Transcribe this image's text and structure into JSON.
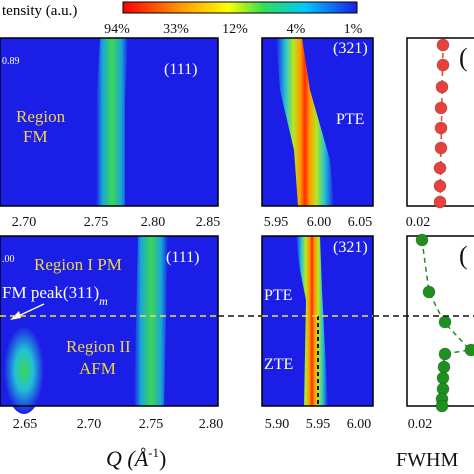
{
  "colors": {
    "background": "#1a1ee6",
    "region_text": "#f0d44a",
    "annotation_text": "#ffffff",
    "fm_points": "#e8403a",
    "afm_points": "#1f8f1f",
    "transition_line": "#f0e04a",
    "zte_line": "#111111"
  },
  "colorbar": {
    "title_fragment": "tensity (a.u.)",
    "tick_labels": [
      "94%",
      "33%",
      "12%",
      "4%",
      "1%"
    ]
  },
  "xaxis_label": "Q (Å",
  "xaxis_label_sup": "-1",
  "xaxis_label_close": ")",
  "fwhm_label": "FWHM",
  "chart_data": [
    {
      "panel": "top-left",
      "type": "heatmap",
      "corner_value": "0.89",
      "peak_label": "(111)",
      "region_lines": [
        "Region",
        "FM"
      ],
      "xticks": [
        "2.70",
        "2.75",
        "2.80",
        "2.85"
      ],
      "xlim": [
        2.67,
        2.85
      ]
    },
    {
      "panel": "top-middle",
      "type": "heatmap",
      "peak_label": "(321)",
      "region_text": "PTE",
      "xticks": [
        "5.95",
        "6.00",
        "6.05"
      ],
      "xlim": [
        5.95,
        6.05
      ]
    },
    {
      "panel": "top-right",
      "type": "scatter",
      "partial_label": "(",
      "xticks": [
        "0.02"
      ],
      "marker_color": "#e8403a",
      "marker_count": 9
    },
    {
      "panel": "bottom-left",
      "type": "heatmap",
      "corner_value": ".00",
      "peak_label": "(111)",
      "region1_text": "Region I  PM",
      "afm_peak_label": "FM peak(311)",
      "afm_peak_sub": "m",
      "region2_lines": [
        "Region II",
        "AFM"
      ],
      "xticks": [
        "2.65",
        "2.70",
        "2.75",
        "2.80"
      ],
      "xlim": [
        2.62,
        2.8
      ]
    },
    {
      "panel": "bottom-middle",
      "type": "heatmap",
      "peak_label": "(321)",
      "upper_text": "PTE",
      "lower_text": "ZTE",
      "xticks": [
        "5.90",
        "5.95",
        "6.00"
      ],
      "xlim": [
        5.9,
        6.0
      ]
    },
    {
      "panel": "bottom-right",
      "type": "scatter",
      "partial_label": "(",
      "xticks": [
        "0.02"
      ],
      "marker_color": "#1f8f1f",
      "marker_count": 10
    }
  ]
}
